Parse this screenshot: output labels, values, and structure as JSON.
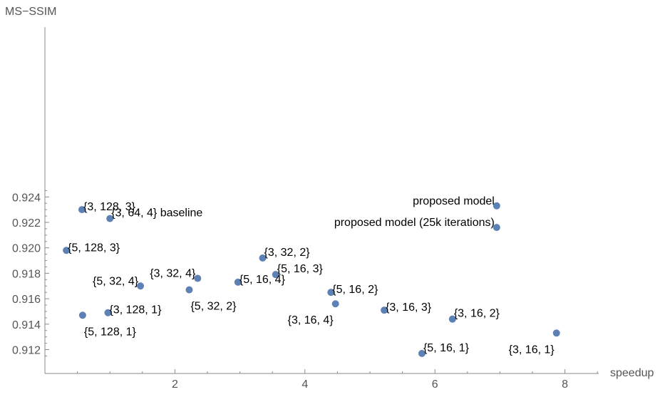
{
  "chart_data": {
    "type": "scatter",
    "xlabel": "speedup",
    "ylabel": "MS−SSIM",
    "xlim": [
      0,
      8.5
    ],
    "ylim": [
      0.9113,
      0.9245
    ],
    "x_ticks": [
      2,
      4,
      6,
      8
    ],
    "x_tick_labels": [
      "2",
      "4",
      "6",
      "8"
    ],
    "y_ticks": [
      0.912,
      0.914,
      0.916,
      0.918,
      0.92,
      0.922,
      0.924
    ],
    "y_tick_labels": [
      "0.912",
      "0.914",
      "0.916",
      "0.918",
      "0.920",
      "0.922",
      "0.924"
    ],
    "grid": false,
    "point_color": "#5e81b5",
    "points": [
      {
        "x": 6.95,
        "y": 0.9233,
        "label": "proposed model",
        "anchor": "left-up"
      },
      {
        "x": 6.95,
        "y": 0.9216,
        "label": "proposed model (25k iterations)",
        "anchor": "left-up"
      },
      {
        "x": 0.57,
        "y": 0.923,
        "label": "{3, 128, 3}",
        "anchor": "right"
      },
      {
        "x": 1.0,
        "y": 0.9223,
        "label": "{3, 64, 4} baseline",
        "anchor": "right-up"
      },
      {
        "x": 0.33,
        "y": 0.9198,
        "label": "{5, 128, 3}",
        "anchor": "right"
      },
      {
        "x": 3.35,
        "y": 0.9192,
        "label": "{3, 32, 2}",
        "anchor": "right-up"
      },
      {
        "x": 3.55,
        "y": 0.9179,
        "label": "{5, 16, 3}",
        "anchor": "right-up"
      },
      {
        "x": 2.35,
        "y": 0.9176,
        "label": "{3, 32, 4}",
        "anchor": "left-up"
      },
      {
        "x": 2.97,
        "y": 0.9173,
        "label": "{5, 16, 4}",
        "anchor": "right"
      },
      {
        "x": 1.47,
        "y": 0.917,
        "label": "{5, 32, 4}",
        "anchor": "left-up"
      },
      {
        "x": 2.22,
        "y": 0.9167,
        "label": "{5, 32, 2}",
        "anchor": "right-down"
      },
      {
        "x": 4.4,
        "y": 0.9165,
        "label": "{5, 16, 2}",
        "anchor": "right"
      },
      {
        "x": 4.47,
        "y": 0.9156,
        "label": "{3, 16, 4}",
        "anchor": "left-down"
      },
      {
        "x": 5.22,
        "y": 0.9151,
        "label": "{3, 16, 3}",
        "anchor": "right"
      },
      {
        "x": 0.97,
        "y": 0.9149,
        "label": "{3, 128, 1}",
        "anchor": "right"
      },
      {
        "x": 0.58,
        "y": 0.9147,
        "label": "{5, 128, 1}",
        "anchor": "right-down"
      },
      {
        "x": 6.27,
        "y": 0.9144,
        "label": "{3, 16, 2}",
        "anchor": "right-up"
      },
      {
        "x": 7.87,
        "y": 0.9133,
        "label": "{3, 16, 1}",
        "anchor": "left-down"
      },
      {
        "x": 5.8,
        "y": 0.9117,
        "label": "{5, 16, 1}",
        "anchor": "right-up"
      }
    ]
  }
}
